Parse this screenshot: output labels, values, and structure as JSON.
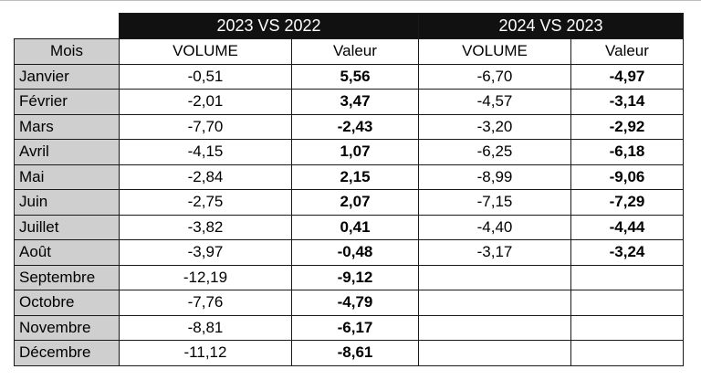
{
  "table": {
    "groups": [
      "2023 VS 2022",
      "2024 VS 2023"
    ],
    "headers": [
      "Mois",
      "VOLUME",
      "Valeur",
      "VOLUME",
      "Valeur"
    ],
    "rows": [
      {
        "mois": "Janvier",
        "vol_2023": "-0,51",
        "val_2023": "5,56",
        "vol_2024": "-6,70",
        "val_2024": "-4,97"
      },
      {
        "mois": "Février",
        "vol_2023": "-2,01",
        "val_2023": "3,47",
        "vol_2024": "-4,57",
        "val_2024": "-3,14"
      },
      {
        "mois": "Mars",
        "vol_2023": "-7,70",
        "val_2023": "-2,43",
        "vol_2024": "-3,20",
        "val_2024": "-2,92"
      },
      {
        "mois": "Avril",
        "vol_2023": "-4,15",
        "val_2023": "1,07",
        "vol_2024": "-6,25",
        "val_2024": "-6,18"
      },
      {
        "mois": "Mai",
        "vol_2023": "-2,84",
        "val_2023": "2,15",
        "vol_2024": "-8,99",
        "val_2024": "-9,06"
      },
      {
        "mois": "Juin",
        "vol_2023": "-2,75",
        "val_2023": "2,07",
        "vol_2024": "-7,15",
        "val_2024": "-7,29"
      },
      {
        "mois": "Juillet",
        "vol_2023": "-3,82",
        "val_2023": "0,41",
        "vol_2024": "-4,40",
        "val_2024": "-4,44"
      },
      {
        "mois": "Août",
        "vol_2023": "-3,97",
        "val_2023": "-0,48",
        "vol_2024": "-3,17",
        "val_2024": "-3,24"
      },
      {
        "mois": "Septembre",
        "vol_2023": "-12,19",
        "val_2023": "-9,12",
        "vol_2024": "",
        "val_2024": ""
      },
      {
        "mois": "Octobre",
        "vol_2023": "-7,76",
        "val_2023": "-4,79",
        "vol_2024": "",
        "val_2024": ""
      },
      {
        "mois": "Novembre",
        "vol_2023": "-8,81",
        "val_2023": "-6,17",
        "vol_2024": "",
        "val_2024": ""
      },
      {
        "mois": "Décembre",
        "vol_2023": "-11,12",
        "val_2023": "-8,61",
        "vol_2024": "",
        "val_2024": ""
      }
    ]
  }
}
